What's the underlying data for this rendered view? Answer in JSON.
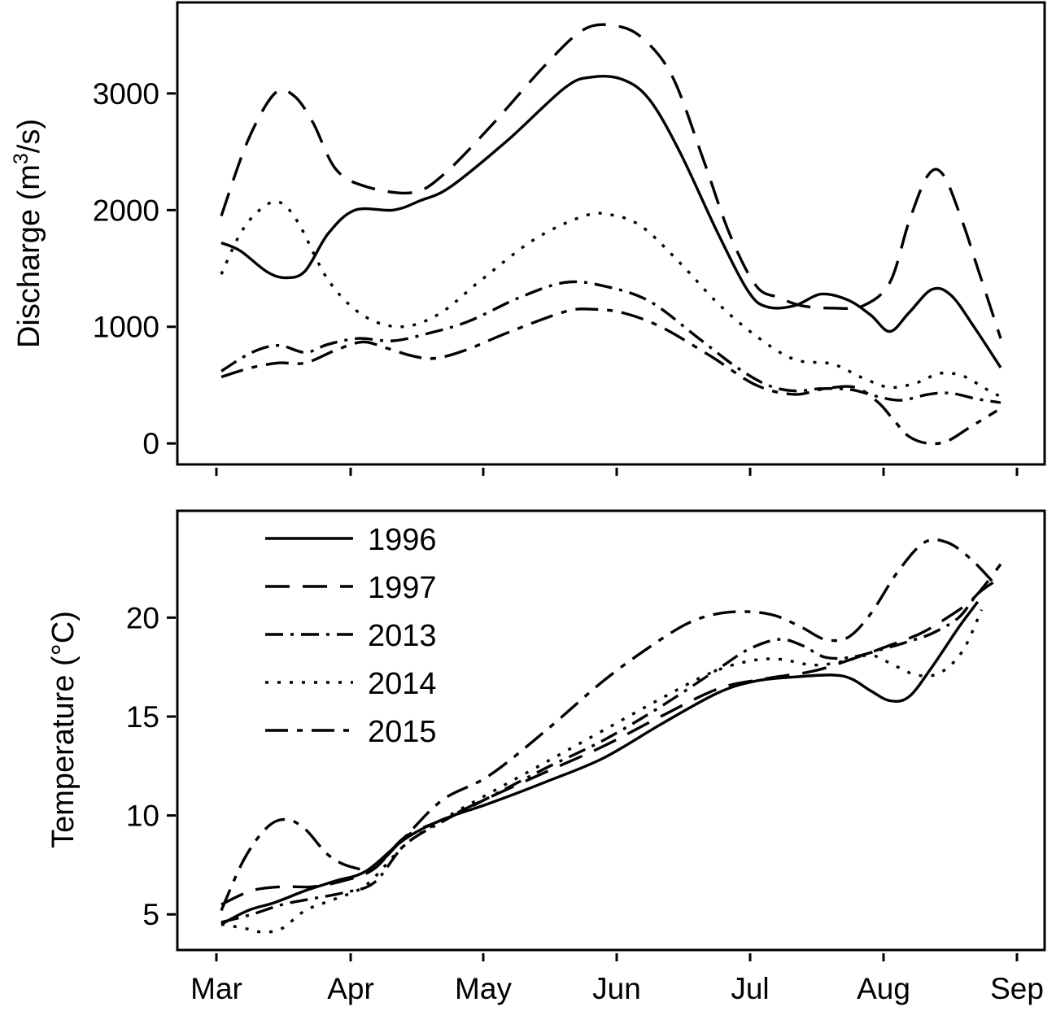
{
  "chart_data": [
    {
      "type": "line",
      "ylabel": "Discharge (m³/s)",
      "ylabel_parts": {
        "pre": "Discharge (m",
        "sup": "3",
        "post": "/s)"
      },
      "x_ticks": [
        "",
        "",
        "",
        "",
        "",
        "",
        ""
      ],
      "y_ticks": [
        0,
        1000,
        2000,
        3000
      ],
      "ylim": [
        -180,
        3780
      ],
      "grid": false,
      "series": [
        {
          "key": "s1996",
          "dash": "none",
          "points": [
            [
              0,
              1720
            ],
            [
              5,
              1650
            ],
            [
              12,
              1470
            ],
            [
              17,
              1420
            ],
            [
              22,
              1480
            ],
            [
              28,
              1800
            ],
            [
              35,
              2000
            ],
            [
              45,
              2000
            ],
            [
              52,
              2080
            ],
            [
              60,
              2200
            ],
            [
              75,
              2600
            ],
            [
              90,
              3050
            ],
            [
              97,
              3140
            ],
            [
              105,
              3120
            ],
            [
              112,
              2950
            ],
            [
              120,
              2500
            ],
            [
              130,
              1800
            ],
            [
              138,
              1300
            ],
            [
              143,
              1170
            ],
            [
              150,
              1180
            ],
            [
              157,
              1280
            ],
            [
              164,
              1230
            ],
            [
              170,
              1100
            ],
            [
              175,
              960
            ],
            [
              180,
              1120
            ],
            [
              186,
              1320
            ],
            [
              191,
              1270
            ],
            [
              197,
              1000
            ],
            [
              204,
              650
            ]
          ]
        },
        {
          "key": "s1997",
          "dash": "30,16",
          "points": [
            [
              0,
              1950
            ],
            [
              7,
              2600
            ],
            [
              14,
              3000
            ],
            [
              19,
              2980
            ],
            [
              24,
              2750
            ],
            [
              30,
              2350
            ],
            [
              38,
              2200
            ],
            [
              50,
              2150
            ],
            [
              58,
              2300
            ],
            [
              70,
              2700
            ],
            [
              85,
              3250
            ],
            [
              95,
              3550
            ],
            [
              103,
              3580
            ],
            [
              110,
              3480
            ],
            [
              118,
              3150
            ],
            [
              126,
              2450
            ],
            [
              133,
              1800
            ],
            [
              140,
              1350
            ],
            [
              146,
              1250
            ],
            [
              152,
              1180
            ],
            [
              160,
              1160
            ],
            [
              168,
              1180
            ],
            [
              175,
              1380
            ],
            [
              180,
              1900
            ],
            [
              185,
              2300
            ],
            [
              189,
              2300
            ],
            [
              194,
              1900
            ],
            [
              198,
              1500
            ],
            [
              204,
              900
            ]
          ]
        },
        {
          "key": "s2013",
          "dash": "22,9,4,9",
          "points": [
            [
              0,
              620
            ],
            [
              8,
              780
            ],
            [
              15,
              840
            ],
            [
              22,
              780
            ],
            [
              28,
              850
            ],
            [
              36,
              900
            ],
            [
              45,
              880
            ],
            [
              55,
              950
            ],
            [
              65,
              1050
            ],
            [
              78,
              1250
            ],
            [
              90,
              1380
            ],
            [
              100,
              1350
            ],
            [
              112,
              1220
            ],
            [
              125,
              900
            ],
            [
              135,
              650
            ],
            [
              143,
              500
            ],
            [
              150,
              450
            ],
            [
              157,
              470
            ],
            [
              165,
              460
            ],
            [
              172,
              400
            ],
            [
              178,
              370
            ],
            [
              185,
              420
            ],
            [
              191,
              430
            ],
            [
              198,
              380
            ],
            [
              204,
              350
            ]
          ]
        },
        {
          "key": "s2014",
          "dash": "4,11",
          "points": [
            [
              0,
              1450
            ],
            [
              5,
              1800
            ],
            [
              10,
              2000
            ],
            [
              15,
              2070
            ],
            [
              20,
              1900
            ],
            [
              28,
              1400
            ],
            [
              37,
              1100
            ],
            [
              47,
              1000
            ],
            [
              57,
              1110
            ],
            [
              68,
              1400
            ],
            [
              82,
              1750
            ],
            [
              95,
              1950
            ],
            [
              102,
              1960
            ],
            [
              110,
              1860
            ],
            [
              120,
              1550
            ],
            [
              130,
              1200
            ],
            [
              140,
              920
            ],
            [
              150,
              720
            ],
            [
              160,
              680
            ],
            [
              168,
              560
            ],
            [
              175,
              480
            ],
            [
              182,
              520
            ],
            [
              188,
              600
            ],
            [
              194,
              580
            ],
            [
              200,
              470
            ],
            [
              204,
              400
            ]
          ]
        },
        {
          "key": "s2015",
          "dash": "28,11,7,11",
          "points": [
            [
              0,
              570
            ],
            [
              8,
              650
            ],
            [
              15,
              690
            ],
            [
              22,
              690
            ],
            [
              30,
              800
            ],
            [
              37,
              870
            ],
            [
              43,
              820
            ],
            [
              50,
              750
            ],
            [
              56,
              730
            ],
            [
              64,
              800
            ],
            [
              75,
              950
            ],
            [
              90,
              1130
            ],
            [
              97,
              1150
            ],
            [
              105,
              1120
            ],
            [
              115,
              1000
            ],
            [
              128,
              750
            ],
            [
              140,
              500
            ],
            [
              150,
              420
            ],
            [
              158,
              470
            ],
            [
              166,
              480
            ],
            [
              172,
              350
            ],
            [
              176,
              200
            ],
            [
              180,
              60
            ],
            [
              185,
              0
            ],
            [
              190,
              20
            ],
            [
              196,
              140
            ],
            [
              203,
              280
            ]
          ]
        }
      ]
    },
    {
      "type": "line",
      "xlabel": "",
      "ylabel": "Temperature (°C)",
      "x_ticks": [
        "Mar",
        "Apr",
        "May",
        "Jun",
        "Jul",
        "Aug",
        "Sep"
      ],
      "y_ticks": [
        5,
        10,
        15,
        20
      ],
      "ylim": [
        3.2,
        25.4
      ],
      "grid": false,
      "legend": {
        "position": "top-left",
        "entries": [
          "1996",
          "1997",
          "2013",
          "2014",
          "2015"
        ]
      },
      "series": [
        {
          "key": "s1996",
          "name": "1996",
          "dash": "none",
          "points": [
            [
              0,
              4.5
            ],
            [
              7,
              5.2
            ],
            [
              14,
              5.6
            ],
            [
              22,
              6.2
            ],
            [
              30,
              6.7
            ],
            [
              38,
              7.2
            ],
            [
              48,
              8.8
            ],
            [
              58,
              9.8
            ],
            [
              70,
              10.6
            ],
            [
              85,
              11.7
            ],
            [
              100,
              12.9
            ],
            [
              115,
              14.6
            ],
            [
              130,
              16.2
            ],
            [
              140,
              16.8
            ],
            [
              150,
              17.0
            ],
            [
              160,
              17.1
            ],
            [
              165,
              16.9
            ],
            [
              170,
              16.3
            ],
            [
              175,
              15.8
            ],
            [
              180,
              16.0
            ],
            [
              186,
              17.5
            ],
            [
              193,
              19.5
            ],
            [
              198,
              20.8
            ]
          ]
        },
        {
          "key": "s1997",
          "name": "1997",
          "dash": "30,16",
          "points": [
            [
              0,
              5.5
            ],
            [
              8,
              6.2
            ],
            [
              16,
              6.4
            ],
            [
              24,
              6.4
            ],
            [
              32,
              6.7
            ],
            [
              40,
              7.3
            ],
            [
              48,
              8.9
            ],
            [
              58,
              9.8
            ],
            [
              70,
              10.9
            ],
            [
              85,
              12.2
            ],
            [
              100,
              13.5
            ],
            [
              115,
              15.0
            ],
            [
              130,
              16.4
            ],
            [
              142,
              16.9
            ],
            [
              155,
              17.3
            ],
            [
              165,
              17.9
            ],
            [
              175,
              18.6
            ],
            [
              183,
              19.2
            ],
            [
              190,
              20.0
            ],
            [
              197,
              21.0
            ],
            [
              204,
              22.7
            ]
          ]
        },
        {
          "key": "s2013",
          "name": "2013",
          "dash": "22,9,4,9",
          "points": [
            [
              0,
              4.6
            ],
            [
              8,
              5.0
            ],
            [
              16,
              5.5
            ],
            [
              24,
              5.8
            ],
            [
              32,
              6.1
            ],
            [
              40,
              6.6
            ],
            [
              48,
              8.5
            ],
            [
              58,
              9.7
            ],
            [
              70,
              10.9
            ],
            [
              85,
              12.4
            ],
            [
              100,
              13.8
            ],
            [
              115,
              15.5
            ],
            [
              130,
              17.4
            ],
            [
              138,
              18.4
            ],
            [
              146,
              18.9
            ],
            [
              152,
              18.6
            ],
            [
              158,
              18.0
            ],
            [
              165,
              18.0
            ],
            [
              173,
              18.4
            ],
            [
              180,
              18.8
            ],
            [
              186,
              19.2
            ],
            [
              193,
              20.0
            ],
            [
              198,
              21.2
            ],
            [
              203,
              21.9
            ]
          ]
        },
        {
          "key": "s2014",
          "name": "2014",
          "dash": "4,11",
          "points": [
            [
              0,
              4.5
            ],
            [
              6,
              4.3
            ],
            [
              11,
              4.1
            ],
            [
              16,
              4.3
            ],
            [
              22,
              5.2
            ],
            [
              30,
              5.8
            ],
            [
              38,
              6.5
            ],
            [
              48,
              8.5
            ],
            [
              58,
              9.8
            ],
            [
              70,
              11.1
            ],
            [
              85,
              12.7
            ],
            [
              100,
              14.3
            ],
            [
              115,
              15.9
            ],
            [
              128,
              17.2
            ],
            [
              138,
              17.8
            ],
            [
              146,
              17.9
            ],
            [
              155,
              17.6
            ],
            [
              163,
              17.8
            ],
            [
              170,
              18.1
            ],
            [
              176,
              17.6
            ],
            [
              182,
              17.1
            ],
            [
              188,
              17.2
            ],
            [
              194,
              18.3
            ],
            [
              199,
              20.4
            ]
          ]
        },
        {
          "key": "s2015",
          "name": "2015",
          "dash": "28,11,7,11",
          "points": [
            [
              0,
              5.2
            ],
            [
              6,
              7.8
            ],
            [
              12,
              9.4
            ],
            [
              17,
              9.8
            ],
            [
              22,
              9.3
            ],
            [
              28,
              8.0
            ],
            [
              34,
              7.4
            ],
            [
              40,
              7.4
            ],
            [
              48,
              8.9
            ],
            [
              58,
              10.8
            ],
            [
              70,
              12.0
            ],
            [
              85,
              14.3
            ],
            [
              100,
              16.8
            ],
            [
              112,
              18.5
            ],
            [
              122,
              19.7
            ],
            [
              130,
              20.2
            ],
            [
              138,
              20.3
            ],
            [
              145,
              20.1
            ],
            [
              152,
              19.5
            ],
            [
              158,
              18.9
            ],
            [
              164,
              19.0
            ],
            [
              170,
              20.2
            ],
            [
              177,
              22.3
            ],
            [
              184,
              23.8
            ],
            [
              190,
              23.8
            ],
            [
              196,
              23.0
            ],
            [
              202,
              21.8
            ]
          ]
        }
      ]
    }
  ]
}
